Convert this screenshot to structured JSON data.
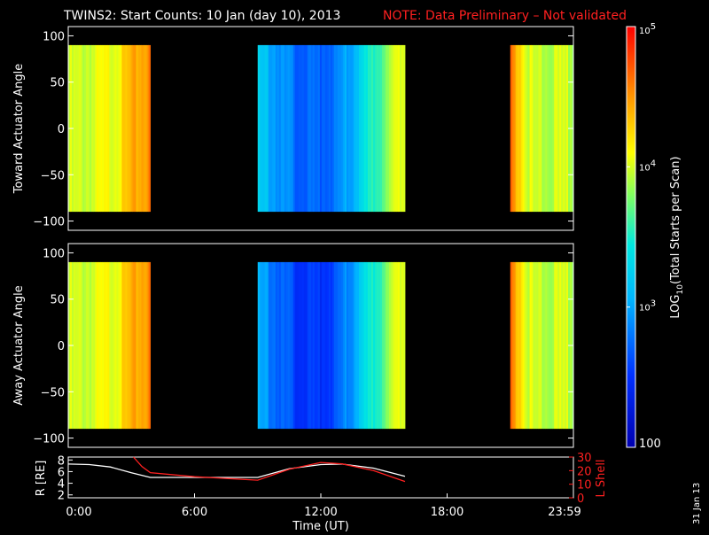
{
  "header": {
    "title": "TWINS2: Start Counts: 10 Jan (day  10), 2013",
    "note": "NOTE: Data Preliminary – Not validated"
  },
  "date_stamp": "31 Jan 13",
  "chart_data": [
    {
      "type": "heatmap",
      "name": "toward",
      "ylabel": "Toward Actuator Angle",
      "ylim": [
        -110,
        110
      ],
      "yticks": [
        "100",
        "50",
        "0",
        "−50",
        "−100"
      ],
      "ytick_values": [
        100,
        50,
        0,
        -50,
        -100
      ],
      "data_ylim": [
        -90,
        90
      ],
      "x_range_hours": [
        0,
        24
      ],
      "segments": [
        {
          "start": 0.0,
          "end": 3.9,
          "level_profile": [
            3.95,
            3.95,
            4.0,
            4.0,
            4.05,
            4.1,
            4.2,
            4.35,
            4.45,
            4.55
          ]
        },
        {
          "start": 9.0,
          "end": 16.0,
          "level_profile": [
            3.2,
            3.05,
            2.85,
            2.75,
            2.7,
            2.75,
            2.85,
            3.05,
            3.35,
            3.6,
            3.9,
            4.1
          ]
        },
        {
          "start": 21.0,
          "end": 24.0,
          "level_profile": [
            4.6,
            4.4,
            4.1,
            3.95,
            3.95,
            3.95,
            3.95,
            3.95,
            3.95,
            3.95
          ]
        }
      ]
    },
    {
      "type": "heatmap",
      "name": "away",
      "ylabel": "Away Actuator Angle",
      "ylim": [
        -110,
        110
      ],
      "yticks": [
        "100",
        "50",
        "0",
        "−50",
        "−100"
      ],
      "ytick_values": [
        100,
        50,
        0,
        -50,
        -100
      ],
      "data_ylim": [
        -90,
        90
      ],
      "x_range_hours": [
        0,
        24
      ],
      "segments": [
        {
          "start": 0.0,
          "end": 3.9,
          "level_profile": [
            3.95,
            3.95,
            4.0,
            4.0,
            4.05,
            4.1,
            4.2,
            4.35,
            4.45,
            4.55
          ]
        },
        {
          "start": 9.0,
          "end": 16.0,
          "level_profile": [
            3.0,
            2.85,
            2.65,
            2.55,
            2.5,
            2.55,
            2.7,
            2.95,
            3.3,
            3.55,
            3.9,
            4.1
          ]
        },
        {
          "start": 21.0,
          "end": 24.0,
          "level_profile": [
            4.6,
            4.4,
            4.1,
            3.95,
            3.95,
            3.95,
            3.95,
            3.95,
            3.95,
            3.95
          ]
        }
      ]
    },
    {
      "type": "line",
      "name": "ephemeris",
      "ylabel_left": "R [RE]",
      "yticks_left": [
        "8",
        "6",
        "4",
        "2"
      ],
      "ytick_values_left": [
        8,
        6,
        4,
        2
      ],
      "ylim_left": [
        1.5,
        8.5
      ],
      "ylabel_right": "L Shell",
      "yticks_right": [
        "30",
        "20",
        "10",
        "0"
      ],
      "ytick_values_right": [
        30,
        20,
        10,
        0
      ],
      "ylim_right": [
        0,
        30
      ],
      "xlabel": "Time (UT)",
      "xticks": [
        "0:00",
        "6:00",
        "12:00",
        "18:00",
        "23:59"
      ],
      "xtick_values": [
        0,
        6,
        12,
        18,
        24
      ],
      "series": [
        {
          "axis": "left",
          "color": "#ffffff",
          "x": [
            0,
            1,
            2,
            3,
            3.9,
            6,
            9,
            10.5,
            12,
            13,
            14.5,
            16
          ],
          "y": [
            7.3,
            7.2,
            6.8,
            5.8,
            5.0,
            5.0,
            5.0,
            6.5,
            7.2,
            7.3,
            6.6,
            5.2
          ]
        },
        {
          "axis": "right",
          "color": "#ff2020",
          "x": [
            3.1,
            3.5,
            3.9,
            6,
            9,
            10.5,
            12,
            13,
            14.5,
            16
          ],
          "y": [
            30,
            23,
            18.5,
            15.5,
            13,
            21,
            26,
            25,
            20,
            12
          ]
        }
      ]
    }
  ],
  "colorbar": {
    "label": "LOG10(Total Starts per Scan)",
    "label_main": "LOG",
    "label_sub": "10",
    "label_rest": "(Total Starts per Scan)",
    "ticks": [
      {
        "text": "10",
        "exp": "5",
        "value": 5
      },
      {
        "text": "10",
        "exp": "4",
        "value": 4
      },
      {
        "text": "10",
        "exp": "3",
        "value": 3
      },
      {
        "text": "100",
        "exp": "",
        "value": 2
      }
    ],
    "range": [
      2,
      5
    ]
  }
}
